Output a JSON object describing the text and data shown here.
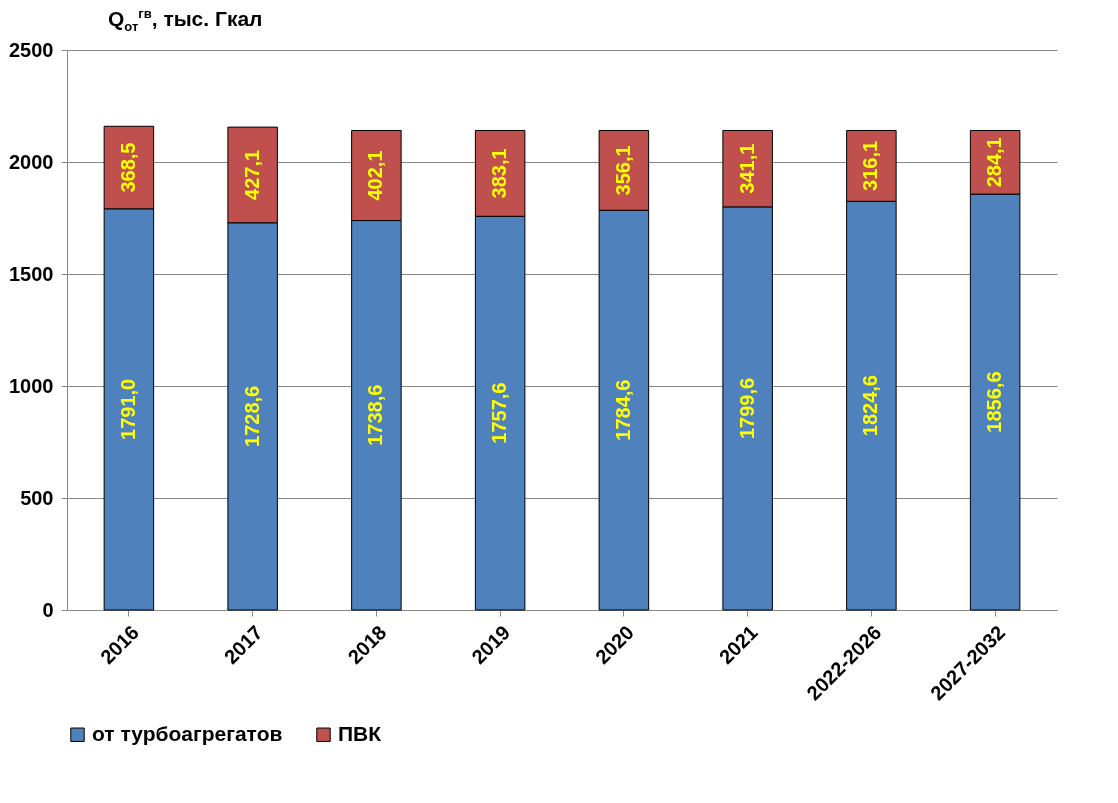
{
  "chart_data": {
    "type": "bar",
    "ylabel": "Q$_{от}$$^{гв}$, тыс. Гкал",
    "categories": [
      "2016",
      "2017",
      "2018",
      "2019",
      "2020",
      "2021",
      "2022-2026",
      "2027-2032"
    ],
    "stacked": true,
    "series": [
      {
        "name": "от турбоагрегатов",
        "color": "#4f81bd",
        "values": [
          1791.0,
          1728.6,
          1738.6,
          1757.6,
          1784.6,
          1799.6,
          1824.6,
          1856.6
        ],
        "value_labels": [
          "1791,0",
          "1728,6",
          "1738,6",
          "1757,6",
          "1784,6",
          "1799,6",
          "1824,6",
          "1856,6"
        ]
      },
      {
        "name": "ПВК",
        "color": "#c0504d",
        "values": [
          368.5,
          427.1,
          402.1,
          383.1,
          356.1,
          341.1,
          316.1,
          284.1
        ],
        "value_labels": [
          "368,5",
          "427,1",
          "402,1",
          "383,1",
          "356,1",
          "341,1",
          "316,1",
          "284,1"
        ]
      }
    ],
    "ylim": [
      0,
      2500
    ],
    "yticks": [
      0,
      500,
      1000,
      1500,
      2000,
      2500
    ],
    "grid": "y",
    "legend": "bottom"
  }
}
